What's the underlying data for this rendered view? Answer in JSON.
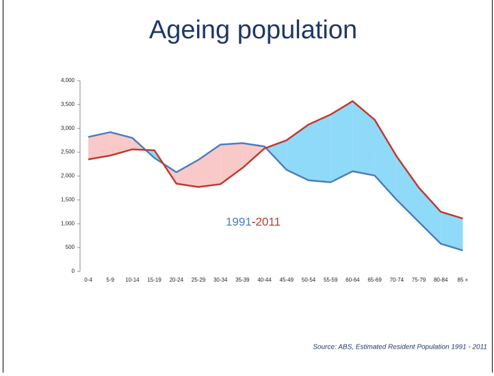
{
  "chart_data": {
    "type": "area-difference",
    "title": "Ageing population",
    "categories": [
      "0-4",
      "5-9",
      "10-14",
      "15-19",
      "20-24",
      "25-29",
      "30-34",
      "35-39",
      "40-44",
      "45-49",
      "50-54",
      "55-59",
      "60-64",
      "65-69",
      "70-74",
      "75-79",
      "80-84",
      "85 +"
    ],
    "series": [
      {
        "name": "1991",
        "color": "#4a7ebb",
        "values": [
          2820,
          2920,
          2800,
          2380,
          2080,
          2340,
          2660,
          2690,
          2620,
          2130,
          1910,
          1870,
          2100,
          2010,
          1500,
          1040,
          580,
          440
        ]
      },
      {
        "name": "2011",
        "color": "#c0392b",
        "values": [
          2350,
          2430,
          2560,
          2540,
          1840,
          1770,
          1830,
          2170,
          2580,
          2750,
          3080,
          3290,
          3570,
          3180,
          2410,
          1760,
          1250,
          1110
        ]
      }
    ],
    "fill_colors": {
      "first_higher": "#f9c9c9",
      "second_higher": "#8fd9f9"
    },
    "annotation_separator": "-",
    "ylim": [
      0,
      4000
    ],
    "yticks": [
      0,
      500,
      {
        "value": 1000,
        "label": "1,000"
      },
      {
        "value": 1500,
        "label": "1,500"
      },
      {
        "value": 2000,
        "label": "2,000"
      },
      {
        "value": 2500,
        "label": "2,500"
      },
      {
        "value": 3000,
        "label": "3,000"
      },
      {
        "value": 3500,
        "label": "3,500"
      },
      {
        "value": 4000,
        "label": "4,000"
      }
    ],
    "source": "Source: ABS, Estimated Resident Population 1991 - 2011"
  }
}
